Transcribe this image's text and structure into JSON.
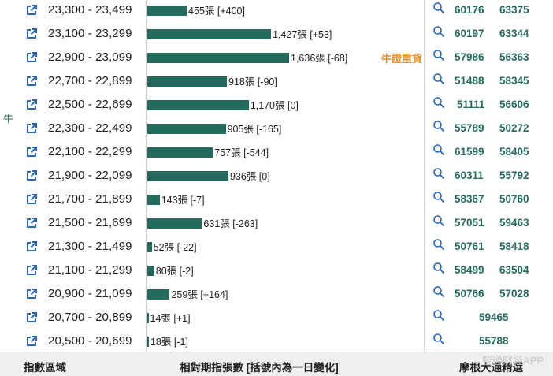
{
  "side_label": "牛",
  "rows": [
    {
      "range": "23,300 - 23,499",
      "value": 455,
      "label": "455張 [+400]",
      "tag": "",
      "codes": [
        "60176",
        "63375"
      ]
    },
    {
      "range": "23,100 - 23,299",
      "value": 1427,
      "label": "1,427張 [+53]",
      "tag": "",
      "codes": [
        "60197",
        "63344"
      ]
    },
    {
      "range": "22,900 - 23,099",
      "value": 1636,
      "label": "1,636張 [-68]",
      "tag": "牛證重貨",
      "codes": [
        "57986",
        "56363"
      ]
    },
    {
      "range": "22,700 - 22,899",
      "value": 918,
      "label": "918張 [-90]",
      "tag": "",
      "codes": [
        "51488",
        "58345"
      ]
    },
    {
      "range": "22,500 - 22,699",
      "value": 1170,
      "label": "1,170張 [0]",
      "tag": "",
      "codes": [
        "51111",
        "56606"
      ]
    },
    {
      "range": "22,300 - 22,499",
      "value": 905,
      "label": "905張 [-165]",
      "tag": "",
      "codes": [
        "55789",
        "50272"
      ]
    },
    {
      "range": "22,100 - 22,299",
      "value": 757,
      "label": "757張 [-544]",
      "tag": "",
      "codes": [
        "61599",
        "58405"
      ]
    },
    {
      "range": "21,900 - 22,099",
      "value": 936,
      "label": "936張 [0]",
      "tag": "",
      "codes": [
        "60311",
        "55792"
      ]
    },
    {
      "range": "21,700 - 21,899",
      "value": 143,
      "label": "143張 [-7]",
      "tag": "",
      "codes": [
        "58367",
        "50760"
      ]
    },
    {
      "range": "21,500 - 21,699",
      "value": 631,
      "label": "631張 [-263]",
      "tag": "",
      "codes": [
        "57051",
        "59463"
      ]
    },
    {
      "range": "21,300 - 21,499",
      "value": 52,
      "label": "52張 [-22]",
      "tag": "",
      "codes": [
        "50761",
        "58418"
      ]
    },
    {
      "range": "21,100 - 21,299",
      "value": 80,
      "label": "80張 [-2]",
      "tag": "",
      "codes": [
        "58499",
        "63504"
      ]
    },
    {
      "range": "20,900 - 21,099",
      "value": 259,
      "label": "259張 [+164]",
      "tag": "",
      "codes": [
        "50766",
        "57028"
      ]
    },
    {
      "range": "20,700 - 20,899",
      "value": 14,
      "label": "14張 [+1]",
      "tag": "",
      "codes": [
        "59465"
      ]
    },
    {
      "range": "20,500 - 20,699",
      "value": 18,
      "label": "18張 [-1]",
      "tag": "",
      "codes": [
        "55788"
      ]
    }
  ],
  "footer": {
    "col1": "指數區域",
    "col2": "相對期指張數 [括號內為一日變化]",
    "col3": "摩根大通精選"
  },
  "watermark": "智通财经APP",
  "colors": {
    "bar": "#246b5d",
    "accent": "#e8912b",
    "code": "#246b5d"
  }
}
